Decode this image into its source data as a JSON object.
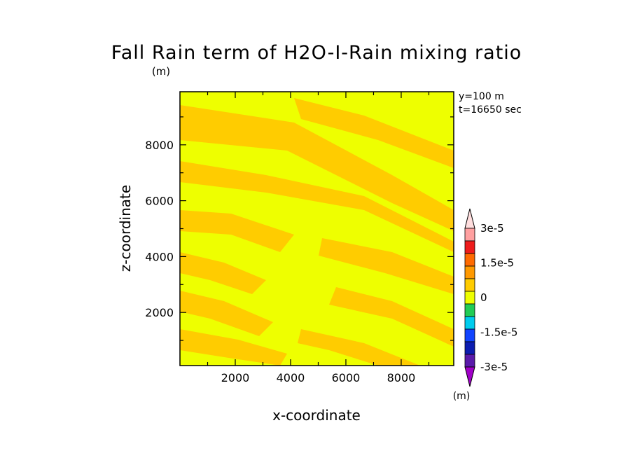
{
  "chart_data": {
    "type": "heatmap",
    "title": "Fall Rain term of H2O-I-Rain mixing ratio",
    "unit_top": "(m)",
    "xlabel": "x-coordinate",
    "ylabel": "z-coordinate",
    "annotations": [
      "y=100 m",
      "t=16650 sec"
    ],
    "xlim": [
      0,
      9900
    ],
    "ylim": [
      100,
      9900
    ],
    "xticks": [
      2000,
      4000,
      6000,
      8000
    ],
    "yticks": [
      2000,
      4000,
      6000,
      8000
    ],
    "grid": false,
    "field_colors": {
      "low": "#ffcc00",
      "high": "#eeff00"
    },
    "colorbar": {
      "unit": "(m)",
      "levels": [
        "3e-5",
        "1.5e-5",
        "0",
        "-1.5e-5",
        "-3e-5"
      ],
      "colors": [
        "#ffdede",
        "#ffa0a0",
        "#ee1c1c",
        "#ff6a00",
        "#ff9900",
        "#ffcc00",
        "#eeff00",
        "#22cc55",
        "#00ccee",
        "#1144ff",
        "#0c1cb0",
        "#5a1aaa",
        "#a000c8"
      ]
    }
  }
}
